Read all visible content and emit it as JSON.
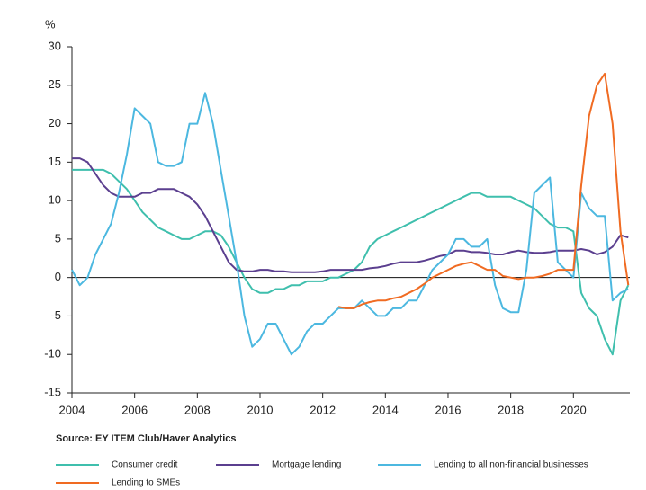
{
  "chart_data": {
    "type": "line",
    "y_label": "%",
    "source": "Source: EY ITEM Club/Haver Analytics",
    "xlim": [
      2004,
      2021.8
    ],
    "ylim": [
      -15,
      30
    ],
    "xticks": [
      2004,
      2006,
      2008,
      2010,
      2012,
      2014,
      2016,
      2018,
      2020
    ],
    "yticks": [
      -15,
      -10,
      -5,
      0,
      5,
      10,
      15,
      20,
      25,
      30
    ],
    "x": [
      2004,
      2004.25,
      2004.5,
      2004.75,
      2005,
      2005.25,
      2005.5,
      2005.75,
      2006,
      2006.25,
      2006.5,
      2006.75,
      2007,
      2007.25,
      2007.5,
      2007.75,
      2008,
      2008.25,
      2008.5,
      2008.75,
      2009,
      2009.25,
      2009.5,
      2009.75,
      2010,
      2010.25,
      2010.5,
      2010.75,
      2011,
      2011.25,
      2011.5,
      2011.75,
      2012,
      2012.25,
      2012.5,
      2012.75,
      2013,
      2013.25,
      2013.5,
      2013.75,
      2014,
      2014.25,
      2014.5,
      2014.75,
      2015,
      2015.25,
      2015.5,
      2015.75,
      2016,
      2016.25,
      2016.5,
      2016.75,
      2017,
      2017.25,
      2017.5,
      2017.75,
      2018,
      2018.25,
      2018.5,
      2018.75,
      2019,
      2019.25,
      2019.5,
      2019.75,
      2020,
      2020.25,
      2020.5,
      2020.75,
      2021,
      2021.25,
      2021.5,
      2021.75
    ],
    "series": [
      {
        "name": "Consumer credit",
        "color": "#3fbfad",
        "values": [
          14,
          14,
          14,
          14,
          14,
          13.5,
          12.5,
          11.5,
          10,
          8.5,
          7.5,
          6.5,
          6,
          5.5,
          5,
          5,
          5.5,
          6,
          6,
          5.5,
          4,
          2,
          0,
          -1.5,
          -2,
          -2,
          -1.5,
          -1.5,
          -1,
          -1,
          -0.5,
          -0.5,
          -0.5,
          0,
          0,
          0.5,
          1,
          2,
          4,
          5,
          5.5,
          6,
          6.5,
          7,
          7.5,
          8,
          8.5,
          9,
          9.5,
          10,
          10.5,
          11,
          11,
          10.5,
          10.5,
          10.5,
          10.5,
          10,
          9.5,
          9,
          8,
          7,
          6.5,
          6.5,
          6,
          -2,
          -4,
          -5,
          -8,
          -10,
          -3,
          -1
        ]
      },
      {
        "name": "Mortgage lending",
        "color": "#5b3f8f",
        "values": [
          15.5,
          15.5,
          15,
          13.5,
          12,
          11,
          10.5,
          10.5,
          10.5,
          11,
          11,
          11.5,
          11.5,
          11.5,
          11,
          10.5,
          9.5,
          8,
          6,
          4,
          2,
          1,
          0.8,
          0.8,
          1,
          1,
          0.8,
          0.8,
          0.7,
          0.7,
          0.7,
          0.7,
          0.8,
          1,
          1,
          1,
          1,
          1,
          1.2,
          1.3,
          1.5,
          1.8,
          2,
          2,
          2,
          2.2,
          2.5,
          2.8,
          3,
          3.5,
          3.5,
          3.3,
          3.3,
          3.2,
          3,
          3,
          3.3,
          3.5,
          3.3,
          3.2,
          3.2,
          3.3,
          3.5,
          3.5,
          3.5,
          3.7,
          3.5,
          3,
          3.3,
          4,
          5.5,
          5.2
        ]
      },
      {
        "name": "Lending to all non-financial businesses",
        "color": "#4cb8e0",
        "values": [
          1,
          -1,
          0,
          3,
          5,
          7,
          11,
          16,
          22,
          21,
          20,
          15,
          14.5,
          14.5,
          15,
          20,
          20,
          24,
          20,
          14,
          8,
          2,
          -5,
          -9,
          -8,
          -6,
          -6,
          -8,
          -10,
          -9,
          -7,
          -6,
          -6,
          -5,
          -4,
          -4,
          -4,
          -3,
          -4,
          -5,
          -5,
          -4,
          -4,
          -3,
          -3,
          -1,
          1,
          2,
          3,
          5,
          5,
          4,
          4,
          5,
          -1,
          -4,
          -4.5,
          -4.5,
          1,
          11,
          12,
          13,
          2,
          1,
          0,
          11,
          9,
          8,
          8,
          -3,
          -2,
          -1.5
        ]
      },
      {
        "name": "Lending to SMEs",
        "color": "#f06b22",
        "values": [
          null,
          null,
          null,
          null,
          null,
          null,
          null,
          null,
          null,
          null,
          null,
          null,
          null,
          null,
          null,
          null,
          null,
          null,
          null,
          null,
          null,
          null,
          null,
          null,
          null,
          null,
          null,
          null,
          null,
          null,
          null,
          null,
          null,
          null,
          -3.8,
          -4,
          -4,
          -3.5,
          -3.2,
          -3,
          -3,
          -2.7,
          -2.5,
          -2,
          -1.5,
          -0.8,
          0,
          0.5,
          1,
          1.5,
          1.8,
          2,
          1.5,
          1,
          1,
          0.2,
          0,
          -0.2,
          0,
          0,
          0.2,
          0.5,
          1,
          1,
          1,
          12,
          21,
          25,
          26.5,
          20,
          6,
          -1
        ]
      }
    ]
  }
}
